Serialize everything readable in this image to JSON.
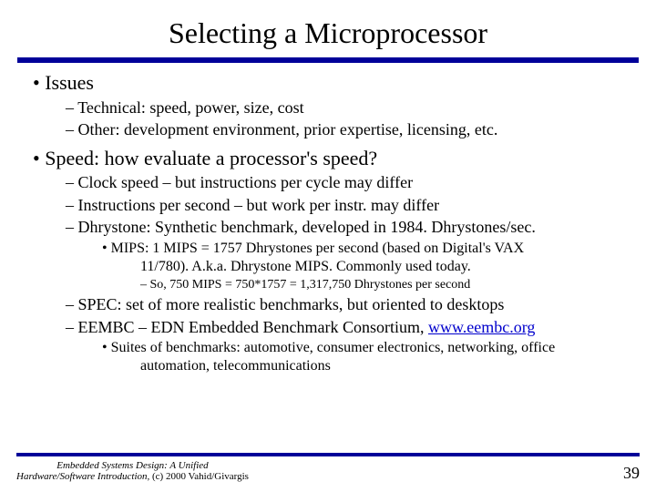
{
  "colors": {
    "rule": "#000099",
    "link": "#0000cc",
    "text": "#000000",
    "background": "#ffffff"
  },
  "title": "Selecting a Microprocessor",
  "b1": "Issues",
  "b1a": "Technical: speed, power, size, cost",
  "b1b": "Other: development environment, prior expertise, licensing, etc.",
  "b2": "Speed: how evaluate a processor's speed?",
  "b2a": "Clock speed – but instructions per cycle may differ",
  "b2b": "Instructions per second – but work per instr. may differ",
  "b2c": "Dhrystone: Synthetic benchmark, developed in 1984. Dhrystones/sec.",
  "b2c1a": "MIPS: 1 MIPS = 1757 Dhrystones per second (based on Digital's VAX",
  "b2c1b": "11/780). A.k.a. Dhrystone MIPS. Commonly used today.",
  "b2c1i": "So, 750 MIPS = 750*1757 = 1,317,750 Dhrystones per second",
  "b2d": "SPEC: set of more realistic benchmarks, but oriented to desktops",
  "b2e_pre": "EEMBC – EDN Embedded Benchmark Consortium, ",
  "b2e_link": "www.eembc.org",
  "b2e1a": "Suites of benchmarks: automotive, consumer electronics, networking, office",
  "b2e1b": "automation, telecommunications",
  "footer1": "Embedded Systems Design: A Unified",
  "footer2_pre": "Hardware/Software Introduction, ",
  "footer2_post": "(c) 2000 Vahid/Givargis",
  "pagenum": "39"
}
